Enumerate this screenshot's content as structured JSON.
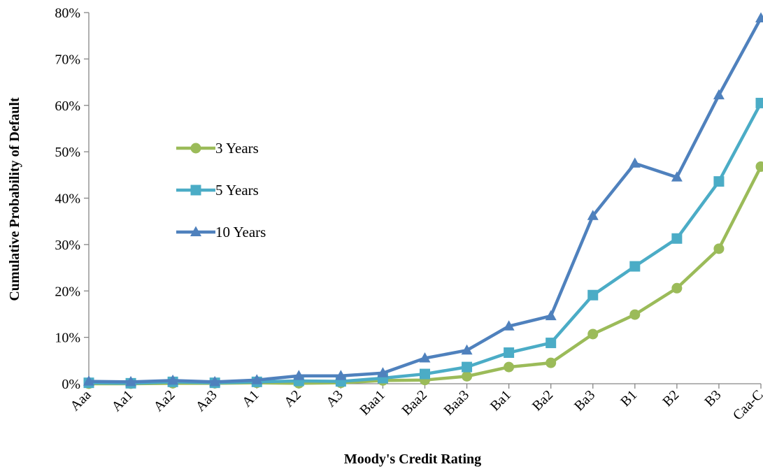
{
  "chart_data": {
    "type": "line",
    "xlabel": "Moody's Credit Rating",
    "ylabel": "Cumulative Probability of Default",
    "ylim": [
      0,
      0.8
    ],
    "yticks": [
      0,
      0.1,
      0.2,
      0.3,
      0.4,
      0.5,
      0.6,
      0.7,
      0.8
    ],
    "ytick_labels": [
      "0%",
      "10%",
      "20%",
      "30%",
      "40%",
      "50%",
      "60%",
      "70%",
      "80%"
    ],
    "categories": [
      "Aaa",
      "Aa1",
      "Aa2",
      "Aa3",
      "A1",
      "A2",
      "A3",
      "Baa1",
      "Baa2",
      "Baa3",
      "Ba1",
      "Ba2",
      "Ba3",
      "B1",
      "B2",
      "B3",
      "Caa-C"
    ],
    "grid": false,
    "legend_position": "left-middle",
    "series": [
      {
        "name": "3 Years",
        "color": "#9bbb59",
        "marker": "circle",
        "values": [
          0.0,
          0.0,
          0.001,
          0.001,
          0.002,
          0.001,
          0.002,
          0.007,
          0.008,
          0.016,
          0.036,
          0.045,
          0.107,
          0.149,
          0.206,
          0.291,
          0.468
        ]
      },
      {
        "name": "5 Years",
        "color": "#4bacc6",
        "marker": "square",
        "values": [
          0.002,
          0.001,
          0.004,
          0.002,
          0.004,
          0.006,
          0.005,
          0.012,
          0.021,
          0.036,
          0.067,
          0.088,
          0.191,
          0.253,
          0.313,
          0.436,
          0.605
        ]
      },
      {
        "name": "10 Years",
        "color": "#4f81bd",
        "marker": "triangle",
        "values": [
          0.005,
          0.004,
          0.007,
          0.004,
          0.008,
          0.017,
          0.017,
          0.023,
          0.055,
          0.072,
          0.124,
          0.146,
          0.362,
          0.475,
          0.445,
          0.622,
          0.788
        ]
      }
    ]
  }
}
